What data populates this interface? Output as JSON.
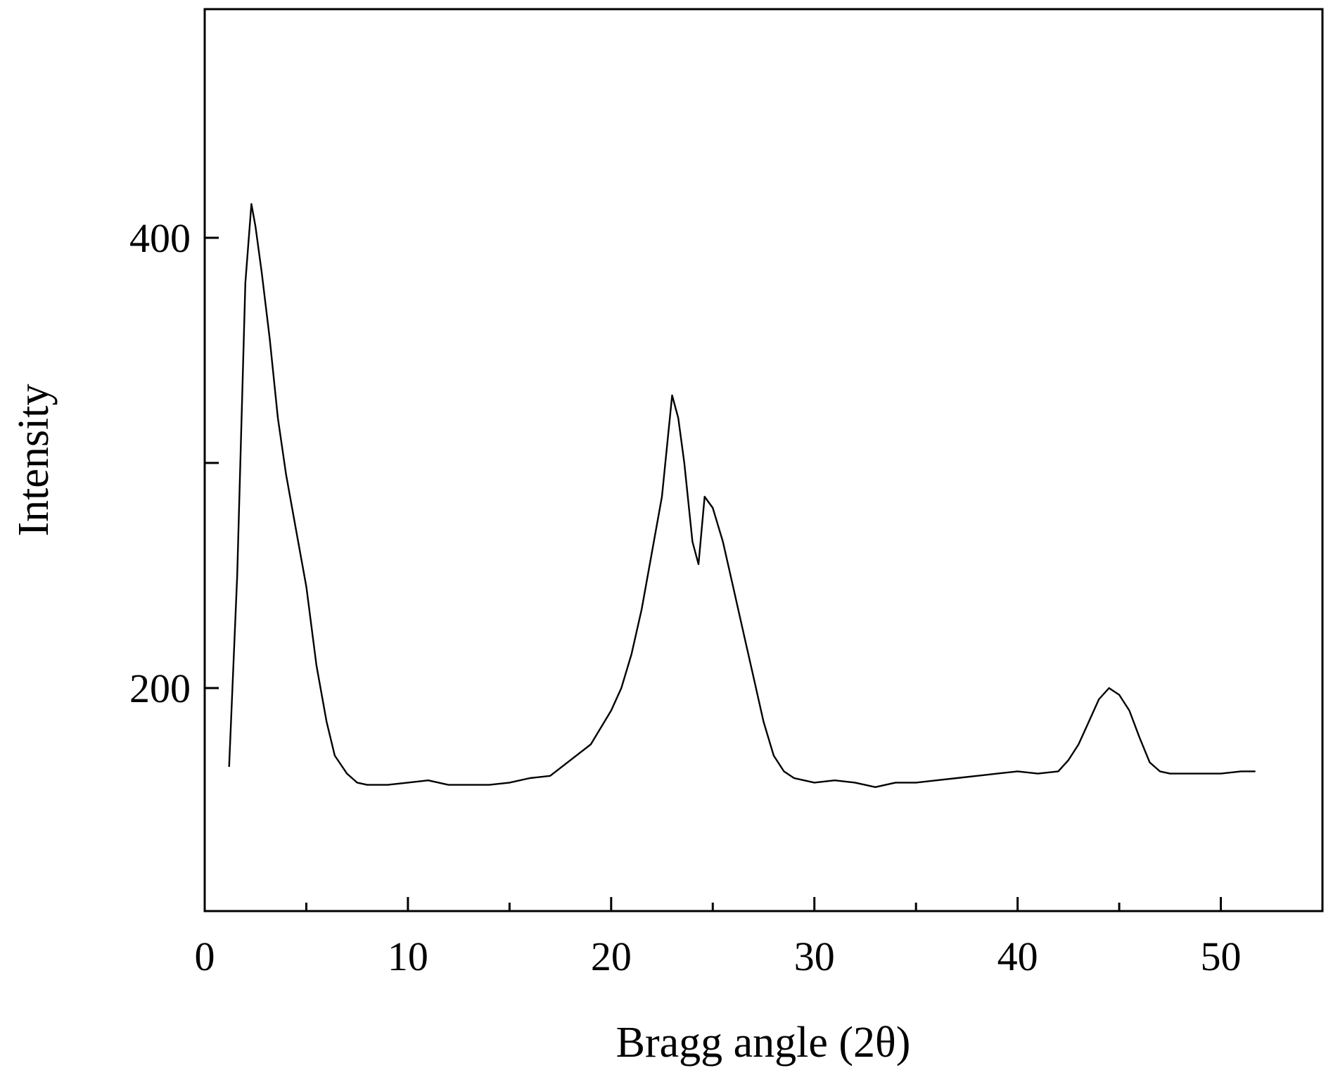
{
  "chart_data": {
    "type": "line",
    "title": "",
    "xlabel": "Bragg angle (2θ)",
    "ylabel": "Intensity",
    "xlim": [
      0,
      55
    ],
    "ylim": [
      100,
      400
    ],
    "x_ticks": [
      0,
      10,
      20,
      30,
      40,
      50
    ],
    "x_tick_labels": [
      "0",
      "10",
      "20",
      "30",
      "40",
      "50"
    ],
    "x_minor_ticks": [
      5,
      15,
      25,
      35,
      45
    ],
    "y_ticks": [
      200,
      300,
      400
    ],
    "y_tick_labels": [
      "200",
      "",
      "400"
    ],
    "grid": false,
    "legend": "none",
    "line_color": "#000000",
    "series": [
      {
        "x": [
          1.2,
          1.6,
          2.0,
          2.3,
          2.5,
          2.8,
          3.2,
          3.6,
          4.0,
          4.5,
          5.0,
          5.5,
          6.0,
          6.4,
          7.0,
          7.5,
          8.0,
          9.0,
          10.0,
          11.0,
          12.0,
          13.0,
          14.0,
          15.0,
          16.0,
          17.0,
          18.0,
          19.0,
          20.0,
          20.5,
          21.0,
          21.5,
          22.0,
          22.5,
          23.0,
          23.3,
          23.6,
          24.0,
          24.3,
          24.6,
          25.0,
          25.5,
          26.0,
          26.5,
          27.0,
          27.5,
          28.0,
          28.5,
          29.0,
          30.0,
          31.0,
          32.0,
          33.0,
          34.0,
          35.0,
          36.0,
          37.0,
          38.0,
          39.0,
          40.0,
          41.0,
          42.0,
          42.5,
          43.0,
          43.5,
          44.0,
          44.5,
          45.0,
          45.5,
          46.0,
          46.5,
          47.0,
          47.5,
          48.0,
          49.0,
          50.0,
          51.0,
          51.7
        ],
        "y": [
          165,
          250,
          380,
          415,
          405,
          385,
          355,
          320,
          295,
          270,
          245,
          210,
          185,
          170,
          162,
          158,
          157,
          157,
          158,
          159,
          157,
          157,
          157,
          158,
          160,
          161,
          168,
          175,
          190,
          200,
          215,
          235,
          260,
          285,
          330,
          320,
          300,
          265,
          255,
          285,
          280,
          265,
          245,
          225,
          205,
          185,
          170,
          163,
          160,
          158,
          159,
          158,
          156,
          158,
          158,
          159,
          160,
          161,
          162,
          163,
          162,
          163,
          168,
          175,
          185,
          195,
          200,
          197,
          190,
          178,
          167,
          163,
          162,
          162,
          162,
          162,
          163,
          163
        ]
      }
    ]
  }
}
